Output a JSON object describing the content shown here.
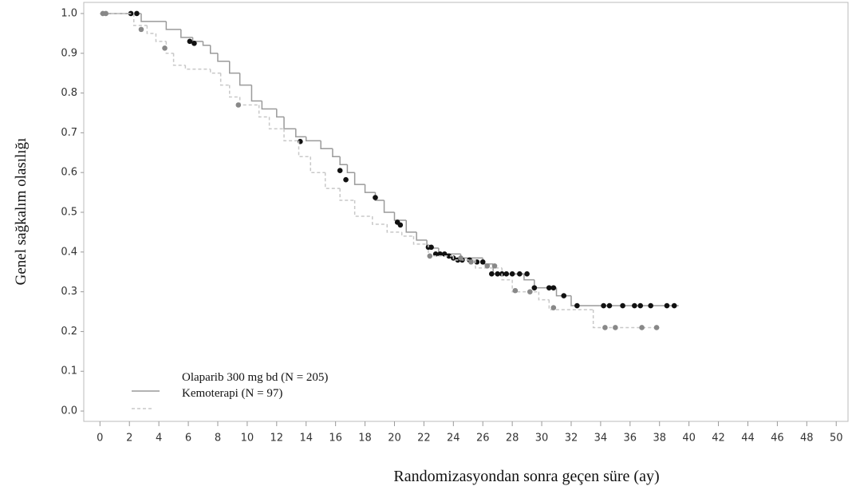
{
  "chart_data": {
    "type": "step",
    "y_label": "Genel sağkalım olasılığı",
    "x_label": "Randomizasyondan sonra geçen süre (ay)",
    "xlim": [
      -1.1,
      50.8
    ],
    "ylim": [
      -0.026,
      1.028
    ],
    "xticks": [
      0,
      2,
      4,
      6,
      8,
      10,
      12,
      14,
      16,
      18,
      20,
      22,
      24,
      26,
      28,
      30,
      32,
      34,
      36,
      38,
      40,
      42,
      44,
      46,
      48,
      50
    ],
    "yticks": [
      {
        "value": 0,
        "label": "0.0"
      },
      0.1,
      0.2,
      0.3,
      0.4,
      0.5,
      0.6,
      0.7,
      0.8,
      0.9,
      {
        "value": 1,
        "label": "1.0"
      }
    ],
    "legend": "lower left",
    "series": [
      {
        "name": "Olaparib 300 mg bd (N = 205)",
        "color": "#9a9a9a",
        "dash": false,
        "censor_color": "#111111",
        "x": [
          0,
          2.8,
          4.5,
          5.5,
          6.3,
          7,
          7.5,
          8,
          8.8,
          9.5,
          10.3,
          11,
          12,
          12.5,
          13.3,
          14,
          15,
          15.8,
          16.3,
          16.8,
          17.3,
          18,
          18.7,
          19.3,
          20,
          20.8,
          21.5,
          22.2,
          23,
          24.5,
          26,
          26.7,
          28.8,
          29.5,
          31,
          32,
          39.3
        ],
        "values": [
          1.0,
          0.98,
          0.96,
          0.94,
          0.93,
          0.92,
          0.9,
          0.88,
          0.85,
          0.82,
          0.78,
          0.76,
          0.74,
          0.71,
          0.69,
          0.68,
          0.66,
          0.64,
          0.62,
          0.6,
          0.57,
          0.55,
          0.53,
          0.5,
          0.48,
          0.45,
          0.43,
          0.41,
          0.395,
          0.385,
          0.37,
          0.345,
          0.33,
          0.31,
          0.29,
          0.265,
          0.265
        ],
        "censor_x": [
          2.1,
          2.5,
          6.1,
          6.4,
          13.6,
          16.3,
          16.7,
          18.7,
          20.2,
          20.4,
          22.3,
          22.5,
          22.8,
          23.1,
          23.4,
          23.7,
          24,
          24.3,
          24.6,
          25.1,
          25.6,
          26,
          26.6,
          27,
          27.3,
          27.6,
          28,
          28.5,
          29,
          29.5,
          30.5,
          30.8,
          31.5,
          32.4,
          34.2,
          34.6,
          35.5,
          36.3,
          36.7,
          37.4,
          38.5,
          39
        ],
        "censor_values": [
          1.0,
          1.0,
          0.93,
          0.925,
          0.678,
          0.605,
          0.582,
          0.537,
          0.475,
          0.468,
          0.412,
          0.412,
          0.395,
          0.395,
          0.395,
          0.39,
          0.385,
          0.38,
          0.38,
          0.38,
          0.375,
          0.375,
          0.345,
          0.345,
          0.345,
          0.345,
          0.345,
          0.345,
          0.345,
          0.31,
          0.31,
          0.31,
          0.29,
          0.265,
          0.265,
          0.265,
          0.265,
          0.265,
          0.265,
          0.265,
          0.265,
          0.265
        ]
      },
      {
        "name": "Kemoterapi (N = 97)",
        "color": "#c8c8c8",
        "dash": true,
        "censor_color": "#888888",
        "x": [
          0,
          2.3,
          3.2,
          3.8,
          4.5,
          5,
          5.8,
          7.5,
          8.2,
          8.8,
          9.5,
          10.8,
          11.5,
          12.5,
          13.5,
          14.3,
          15.3,
          16.3,
          17.3,
          18.5,
          19.5,
          20.5,
          21.3,
          22.3,
          24,
          25.5,
          27.3,
          28,
          29.8,
          30.5,
          33.5,
          38
        ],
        "values": [
          1.0,
          0.97,
          0.95,
          0.93,
          0.9,
          0.87,
          0.86,
          0.85,
          0.82,
          0.79,
          0.77,
          0.74,
          0.71,
          0.68,
          0.64,
          0.6,
          0.56,
          0.53,
          0.49,
          0.47,
          0.45,
          0.44,
          0.42,
          0.39,
          0.38,
          0.36,
          0.33,
          0.3,
          0.28,
          0.255,
          0.21,
          0.21
        ],
        "censor_x": [
          0.2,
          0.4,
          2.8,
          4.4,
          9.4,
          22.4,
          24.5,
          25.2,
          26.3,
          26.8,
          28.2,
          29.2,
          30.8,
          34.3,
          35,
          36.8,
          37.8
        ],
        "censor_values": [
          1.0,
          1.0,
          0.96,
          0.913,
          0.77,
          0.39,
          0.385,
          0.375,
          0.365,
          0.365,
          0.303,
          0.3,
          0.26,
          0.21,
          0.21,
          0.21,
          0.21
        ]
      }
    ]
  }
}
